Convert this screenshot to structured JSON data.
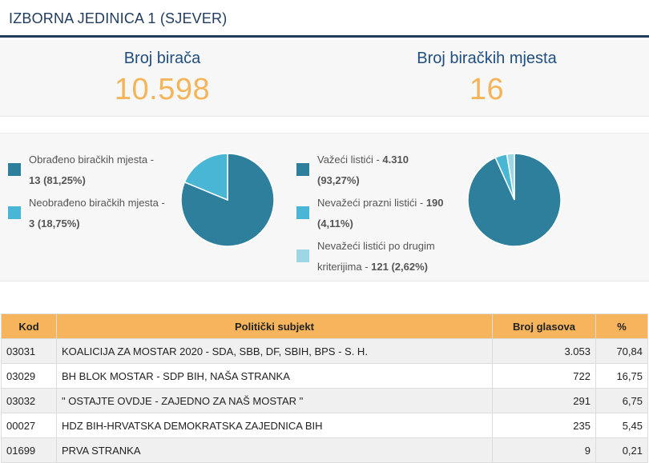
{
  "header": {
    "title": "IZBORNA JEDINICA 1 (SJEVER)"
  },
  "stats": {
    "voters_label": "Broj birača",
    "voters_value": "10.598",
    "stations_label": "Broj biračkih mjesta",
    "stations_value": "16"
  },
  "colors": {
    "dark": "#2d7f9c",
    "light": "#4ab6d6",
    "pale": "#9ed6e6",
    "accent": "#f4b459"
  },
  "chart_data": [
    {
      "type": "pie",
      "series": [
        {
          "name": "Obrađeno biračkih mjesta",
          "value": 13,
          "percent": 81.25
        },
        {
          "name": "Neobrađeno biračkih mjesta",
          "value": 3,
          "percent": 18.75
        }
      ],
      "legend": [
        {
          "text": "Obrađeno biračkih mjesta -",
          "bold": "13 (81,25%)"
        },
        {
          "text": "Neobrađeno biračkih mjesta -",
          "bold": "3 (18,75%)"
        }
      ]
    },
    {
      "type": "pie",
      "series": [
        {
          "name": "Važeći listići",
          "value": 4310,
          "percent": 93.27
        },
        {
          "name": "Nevažeći prazni listići",
          "value": 190,
          "percent": 4.11
        },
        {
          "name": "Nevažeći listići po drugim kriterijima",
          "value": 121,
          "percent": 2.62
        }
      ],
      "legend": [
        {
          "text": "Važeći listići -",
          "bold": "4.310",
          "line2": "(93,27%)"
        },
        {
          "text": "Nevažeći prazni listići -",
          "bold": "190",
          "line2": "(4,11%)"
        },
        {
          "text": "Nevažeći listići po drugim",
          "line2_text": "kriterijima - ",
          "bold": "121 (2,62%)"
        }
      ]
    }
  ],
  "table": {
    "headers": [
      "Kod",
      "Politički subjekt",
      "Broj glasova",
      "%"
    ],
    "rows": [
      {
        "kod": "03031",
        "subjekt": "KOALICIJA ZA MOSTAR 2020 - SDA, SBB, DF, SBIH, BPS - S. H.",
        "glasova": "3.053",
        "pct": "70,84"
      },
      {
        "kod": "03029",
        "subjekt": "BH BLOK MOSTAR - SDP BIH, NAŠA STRANKA",
        "glasova": "722",
        "pct": "16,75"
      },
      {
        "kod": "03032",
        "subjekt": "\" OSTAJTE OVDJE - ZAJEDNO ZA NAŠ MOSTAR \"",
        "glasova": "291",
        "pct": "6,75"
      },
      {
        "kod": "00027",
        "subjekt": "HDZ BIH-HRVATSKA DEMOKRATSKA ZAJEDNICA BIH",
        "glasova": "235",
        "pct": "5,45"
      },
      {
        "kod": "01699",
        "subjekt": "PRVA STRANKA",
        "glasova": "9",
        "pct": "0,21"
      }
    ]
  }
}
